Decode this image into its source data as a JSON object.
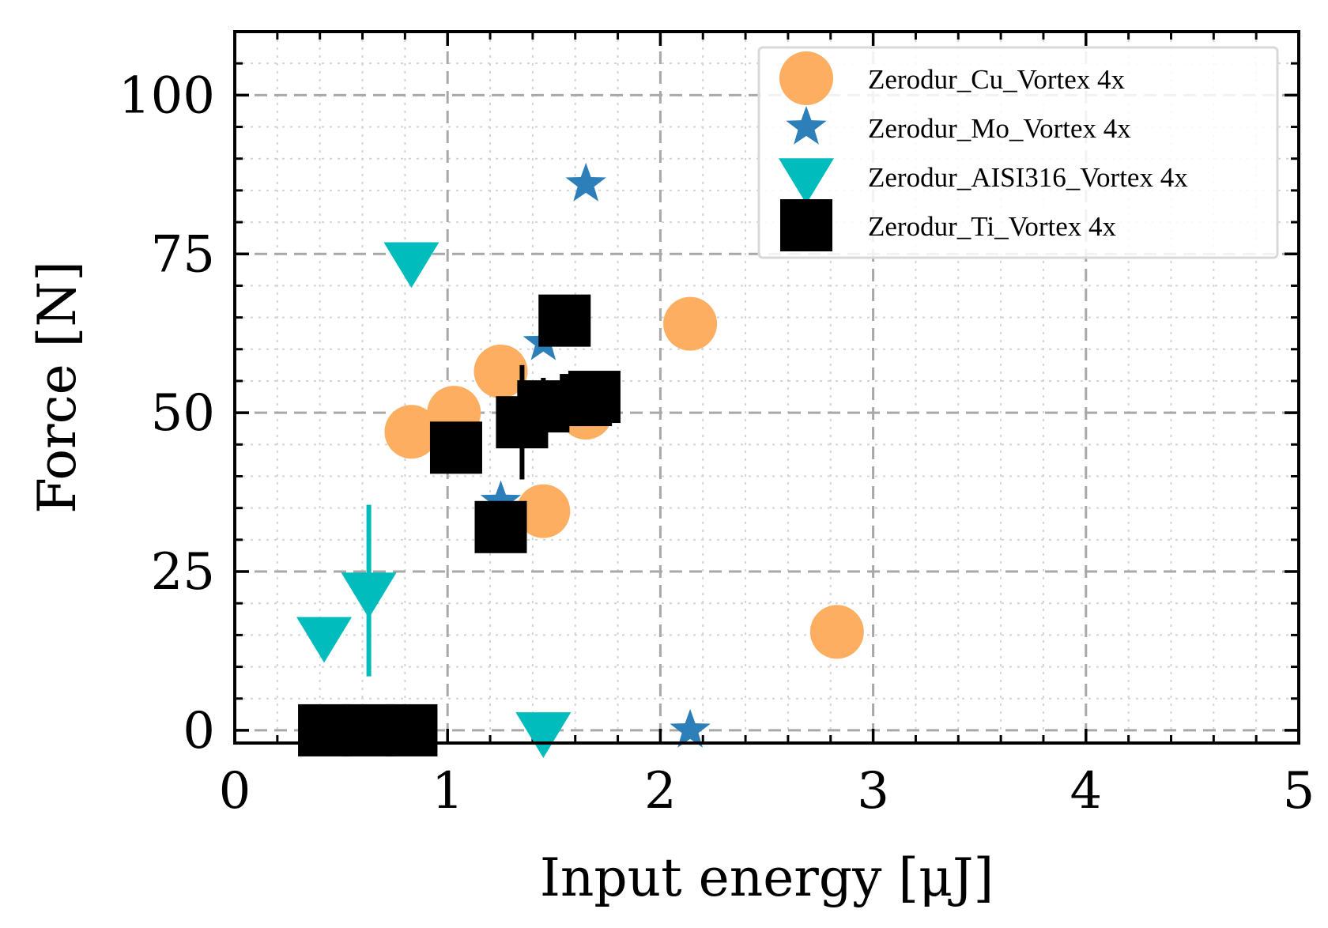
{
  "chart_data": {
    "type": "scatter",
    "title": "",
    "xlabel": "Input energy [μJ]",
    "ylabel": "Force [N]",
    "xlim": [
      0,
      5
    ],
    "ylim": [
      -2,
      110
    ],
    "xticks": [
      0,
      1,
      2,
      3,
      4,
      5
    ],
    "yticks": [
      0,
      25,
      50,
      75,
      100
    ],
    "xtick_labels": [
      "0",
      "1",
      "2",
      "3",
      "4",
      "5"
    ],
    "ytick_labels": [
      "0",
      "25",
      "50",
      "75",
      "100"
    ],
    "grid": true,
    "legend_position": "top-right",
    "series": [
      {
        "name": "Zerodur_Cu_Vortex 4x",
        "marker": "circle",
        "color": "#fdae61",
        "x": [
          0.83,
          1.03,
          1.25,
          1.45,
          1.65,
          2.14,
          2.83
        ],
        "y": [
          47,
          50,
          56.5,
          34.5,
          50,
          64,
          15.5
        ]
      },
      {
        "name": "Zerodur_Mo_Vortex 4x",
        "marker": "star",
        "color": "#2c7fb8",
        "x": [
          1.25,
          1.45,
          1.65,
          2.14
        ],
        "y": [
          36,
          61,
          86,
          0
        ]
      },
      {
        "name": "Zerodur_AISI316_Vortex 4x",
        "marker": "triangle-down",
        "color": "#00bcbc",
        "x": [
          0.42,
          0.63,
          0.83,
          1.45
        ],
        "y": [
          15,
          22,
          74,
          0
        ],
        "yerr": [
          0,
          13.5,
          0,
          0
        ]
      },
      {
        "name": "Zerodur_Ti_Vortex 4x",
        "marker": "square",
        "color": "#000000",
        "x": [
          0.42,
          0.63,
          0.83,
          1.04,
          1.25,
          1.35,
          1.45,
          1.55,
          1.65,
          1.69
        ],
        "y": [
          0,
          0,
          0,
          44.5,
          32,
          48.5,
          51,
          64.5,
          52,
          52.5
        ],
        "yerr": [
          0,
          0,
          0,
          0,
          0,
          9,
          4.5,
          0,
          0,
          0
        ]
      }
    ]
  }
}
